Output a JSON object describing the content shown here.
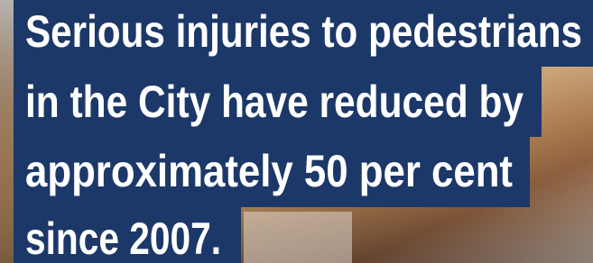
{
  "banner": {
    "lines": [
      "Serious injuries to pedestrians",
      "in the City have reduced by",
      "approximately 50 per cent",
      "since 2007."
    ]
  }
}
